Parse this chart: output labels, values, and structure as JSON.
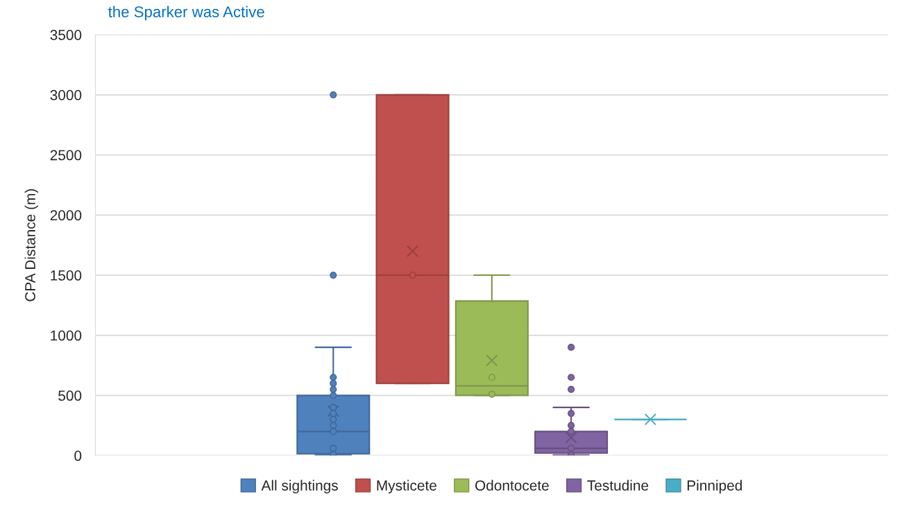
{
  "chart_data": {
    "type": "box",
    "title": "the Sparker was Active",
    "ylabel": "CPA Distance (m)",
    "categories": [
      null
    ],
    "series": [
      {
        "name": "All sightings",
        "color": "#4f81bd",
        "boxes": [
          {
            "low": 5,
            "q1": 15,
            "median": 200,
            "q3": 500,
            "high": 900,
            "mean": 370,
            "outliers": [
              3000,
              1500,
              650,
              600,
              550,
              500,
              400,
              350,
              300,
              250,
              200,
              60,
              10
            ]
          }
        ]
      },
      {
        "name": "Mysticete",
        "color": "#c0504d",
        "boxes": [
          {
            "low": 600,
            "q1": 600,
            "median": 1500,
            "q3": 3000,
            "high": 3000,
            "mean": 1700,
            "outliers": [
              1500
            ]
          }
        ]
      },
      {
        "name": "Odontocete",
        "color": "#9bbb59",
        "boxes": [
          {
            "low": 500,
            "q1": 500,
            "median": 580,
            "q3": 1285,
            "high": 1500,
            "mean": 790,
            "outliers": [
              650,
              510
            ]
          }
        ]
      },
      {
        "name": "Testudine",
        "color": "#8064a2",
        "boxes": [
          {
            "low": 5,
            "q1": 20,
            "median": 60,
            "q3": 200,
            "high": 400,
            "mean": 150,
            "outliers": [
              900,
              650,
              550,
              350,
              250,
              200,
              60,
              5
            ]
          }
        ]
      },
      {
        "name": "Pinniped",
        "color": "#4bacc6",
        "boxes": [
          {
            "low": 300,
            "q1": 300,
            "median": 300,
            "q3": 300,
            "high": 300,
            "mean": 300
          }
        ]
      }
    ],
    "ylim": [
      0,
      3500
    ],
    "yticks": [
      0,
      500,
      1000,
      1500,
      2000,
      2500,
      3000,
      3500
    ],
    "grid": "y",
    "legend": "bottom"
  }
}
